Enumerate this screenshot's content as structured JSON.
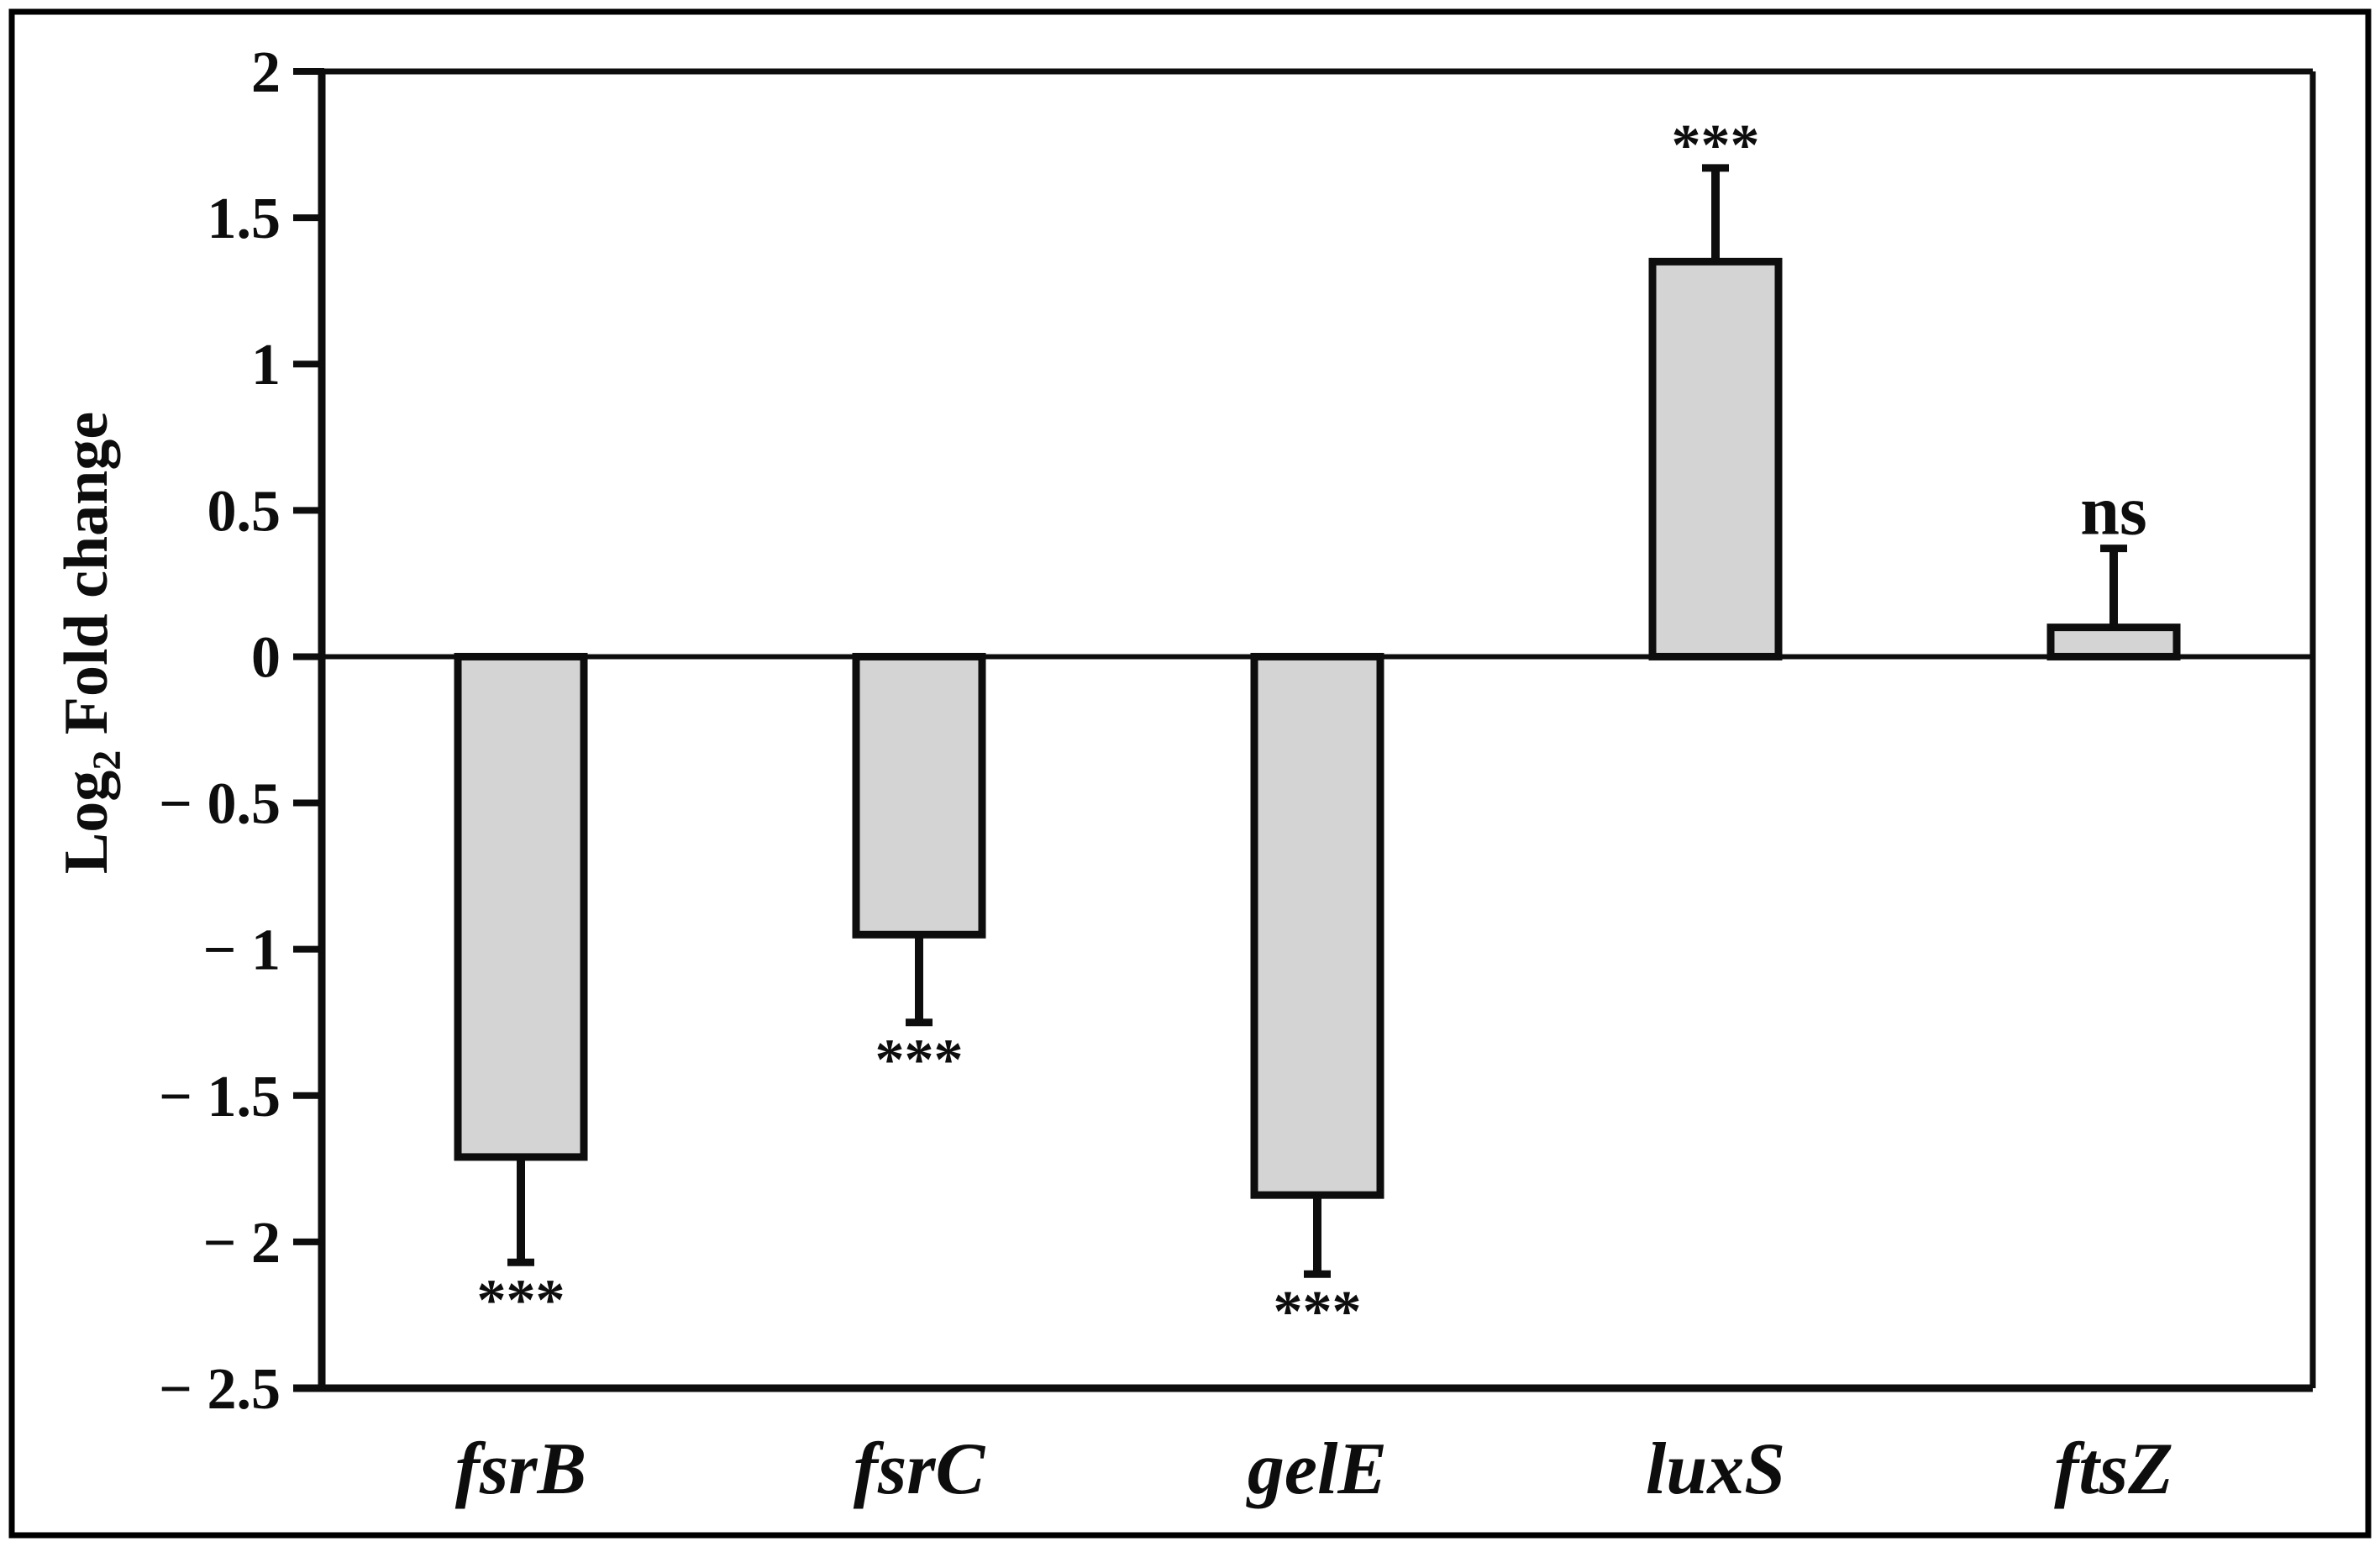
{
  "figure": {
    "background": "#ffffff",
    "border_color": "#000000",
    "line_color": "#0d0d0d"
  },
  "chart_data": {
    "type": "bar",
    "title": "",
    "categories": [
      "fsrB",
      "fsrC",
      "gelE",
      "luxS",
      "ftsZ"
    ],
    "values": [
      -1.71,
      -0.95,
      -1.84,
      1.35,
      0.1
    ],
    "errors": [
      0.36,
      0.3,
      0.27,
      0.32,
      0.27
    ],
    "error_direction": "away-from-zero",
    "annotations": [
      "***",
      "***",
      "***",
      "***",
      "ns"
    ],
    "ylabel_parts": [
      "Log",
      "2",
      " Fold change"
    ],
    "ylabel_plain": "Log2 Fold change",
    "xlabel": "",
    "ylim": [
      -2.5,
      2
    ],
    "yticks": [
      2,
      1.5,
      1,
      0.5,
      0,
      -0.5,
      -1,
      -1.5,
      -2,
      -2.5
    ],
    "ytick_labels": [
      "2",
      "1.5",
      "1",
      "0.5",
      "0",
      "− 0.5",
      "− 1",
      "− 1.5",
      "− 2",
      "− 2.5"
    ],
    "grid": false,
    "legend": null,
    "bar_fill": "#d4d4d4",
    "bar_stroke": "#0d0d0d",
    "baseline_value": 0
  }
}
